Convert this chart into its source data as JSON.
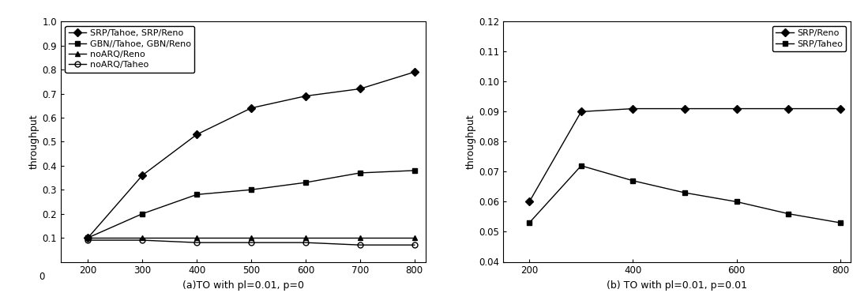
{
  "left": {
    "x": [
      200,
      300,
      400,
      500,
      600,
      700,
      800
    ],
    "series": {
      "SRP/Tahoe, SRP/Reno": [
        0.1,
        0.36,
        0.53,
        0.64,
        0.69,
        0.72,
        0.79
      ],
      "GBN//Tahoe, GBN/Reno": [
        0.1,
        0.2,
        0.28,
        0.3,
        0.33,
        0.37,
        0.38
      ],
      "noARQ/Reno": [
        0.1,
        0.1,
        0.1,
        0.1,
        0.1,
        0.1,
        0.1
      ],
      "noARQ/Taheo": [
        0.09,
        0.09,
        0.08,
        0.08,
        0.08,
        0.07,
        0.07
      ]
    },
    "markers": [
      "D",
      "s",
      "^",
      "o"
    ],
    "colors": [
      "black",
      "black",
      "black",
      "black"
    ],
    "fillstyles": [
      "full",
      "full",
      "full",
      "none"
    ],
    "ylabel": "throughput",
    "xlabel": "(a)TO with pl=0.01, p=0",
    "ylim": [
      0,
      1.0
    ],
    "yticks": [
      0.1,
      0.2,
      0.3,
      0.4,
      0.5,
      0.6,
      0.7,
      0.8,
      0.9,
      1.0
    ],
    "xticks": [
      200,
      300,
      400,
      500,
      600,
      700,
      800
    ]
  },
  "right": {
    "x": [
      200,
      300,
      400,
      500,
      600,
      700,
      800
    ],
    "series": {
      "SRP/Reno": [
        0.06,
        0.09,
        0.091,
        0.091,
        0.091,
        0.091,
        0.091
      ],
      "SRP/Taheo": [
        0.053,
        0.072,
        0.067,
        0.063,
        0.06,
        0.056,
        0.053
      ]
    },
    "markers": [
      "D",
      "s"
    ],
    "colors": [
      "black",
      "black"
    ],
    "ylabel": "throughput",
    "xlabel": "(b) TO with pl=0.01, p=0.01",
    "ylim": [
      0.04,
      0.12
    ],
    "yticks": [
      0.04,
      0.05,
      0.06,
      0.07,
      0.08,
      0.09,
      0.1,
      0.11,
      0.12
    ],
    "xticks": [
      200,
      400,
      600,
      800
    ]
  },
  "font_size": 9,
  "tick_font_size": 8.5,
  "legend_font_size": 8
}
